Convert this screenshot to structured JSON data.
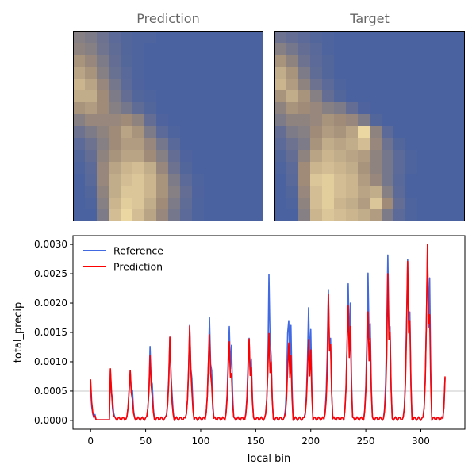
{
  "heatmaps": {
    "left_title": "Prediction",
    "right_title": "Target",
    "colors": {
      "low": "#4a62a0",
      "mid": "#a08b78",
      "high": "#f3dfa6"
    }
  },
  "chart_data": [
    {
      "type": "heatmap",
      "title": "Prediction",
      "rows": 16,
      "cols": 16,
      "values": [
        [
          0.35,
          0.3,
          0.2,
          0.1,
          0.05,
          0.02,
          0.02,
          0.0,
          0.0,
          0.0,
          0.0,
          0.0,
          0.0,
          0.0,
          0.0,
          0.0
        ],
        [
          0.4,
          0.35,
          0.22,
          0.12,
          0.05,
          0.02,
          0.0,
          0.0,
          0.0,
          0.0,
          0.0,
          0.0,
          0.0,
          0.0,
          0.0,
          0.0
        ],
        [
          0.55,
          0.45,
          0.3,
          0.15,
          0.06,
          0.02,
          0.0,
          0.0,
          0.0,
          0.0,
          0.0,
          0.0,
          0.0,
          0.0,
          0.0,
          0.0
        ],
        [
          0.65,
          0.55,
          0.35,
          0.18,
          0.08,
          0.02,
          0.0,
          0.0,
          0.0,
          0.0,
          0.0,
          0.0,
          0.0,
          0.0,
          0.0,
          0.0
        ],
        [
          0.75,
          0.65,
          0.45,
          0.25,
          0.1,
          0.03,
          0.0,
          0.0,
          0.0,
          0.0,
          0.0,
          0.0,
          0.0,
          0.0,
          0.0,
          0.0
        ],
        [
          0.7,
          0.7,
          0.5,
          0.3,
          0.15,
          0.05,
          0.02,
          0.0,
          0.0,
          0.0,
          0.0,
          0.0,
          0.0,
          0.0,
          0.0,
          0.0
        ],
        [
          0.55,
          0.6,
          0.5,
          0.35,
          0.25,
          0.12,
          0.05,
          0.0,
          0.0,
          0.0,
          0.0,
          0.0,
          0.0,
          0.0,
          0.0,
          0.0
        ],
        [
          0.35,
          0.45,
          0.45,
          0.45,
          0.5,
          0.4,
          0.15,
          0.03,
          0.0,
          0.0,
          0.0,
          0.0,
          0.0,
          0.0,
          0.0,
          0.0
        ],
        [
          0.2,
          0.3,
          0.4,
          0.5,
          0.65,
          0.55,
          0.3,
          0.1,
          0.02,
          0.0,
          0.0,
          0.0,
          0.0,
          0.0,
          0.0,
          0.0
        ],
        [
          0.1,
          0.2,
          0.35,
          0.5,
          0.6,
          0.6,
          0.45,
          0.25,
          0.08,
          0.0,
          0.0,
          0.0,
          0.0,
          0.0,
          0.0,
          0.0
        ],
        [
          0.05,
          0.15,
          0.4,
          0.55,
          0.65,
          0.65,
          0.5,
          0.35,
          0.15,
          0.03,
          0.0,
          0.0,
          0.0,
          0.0,
          0.0,
          0.0
        ],
        [
          0.02,
          0.1,
          0.45,
          0.65,
          0.75,
          0.8,
          0.7,
          0.45,
          0.2,
          0.05,
          0.0,
          0.0,
          0.0,
          0.0,
          0.0,
          0.0
        ],
        [
          0.0,
          0.08,
          0.45,
          0.7,
          0.8,
          0.85,
          0.75,
          0.55,
          0.3,
          0.1,
          0.02,
          0.0,
          0.0,
          0.0,
          0.0,
          0.0
        ],
        [
          0.0,
          0.05,
          0.4,
          0.7,
          0.85,
          0.85,
          0.75,
          0.55,
          0.35,
          0.15,
          0.03,
          0.0,
          0.0,
          0.0,
          0.0,
          0.0
        ],
        [
          0.0,
          0.02,
          0.35,
          0.75,
          0.9,
          0.85,
          0.7,
          0.5,
          0.3,
          0.12,
          0.02,
          0.0,
          0.0,
          0.0,
          0.0,
          0.0
        ],
        [
          0.0,
          0.0,
          0.3,
          0.8,
          0.95,
          0.8,
          0.65,
          0.45,
          0.25,
          0.1,
          0.02,
          0.0,
          0.0,
          0.0,
          0.0,
          0.0
        ]
      ]
    },
    {
      "type": "heatmap",
      "title": "Target",
      "rows": 16,
      "cols": 16,
      "values": [
        [
          0.2,
          0.15,
          0.1,
          0.05,
          0.02,
          0.0,
          0.0,
          0.0,
          0.0,
          0.0,
          0.0,
          0.0,
          0.0,
          0.0,
          0.0,
          0.0
        ],
        [
          0.35,
          0.25,
          0.15,
          0.08,
          0.02,
          0.0,
          0.0,
          0.0,
          0.0,
          0.0,
          0.0,
          0.0,
          0.0,
          0.0,
          0.0,
          0.0
        ],
        [
          0.55,
          0.4,
          0.2,
          0.1,
          0.05,
          0.0,
          0.0,
          0.0,
          0.0,
          0.0,
          0.0,
          0.0,
          0.0,
          0.0,
          0.0,
          0.0
        ],
        [
          0.7,
          0.55,
          0.3,
          0.12,
          0.05,
          0.0,
          0.0,
          0.0,
          0.0,
          0.0,
          0.0,
          0.0,
          0.0,
          0.0,
          0.0,
          0.0
        ],
        [
          0.75,
          0.6,
          0.4,
          0.2,
          0.1,
          0.02,
          0.0,
          0.0,
          0.0,
          0.0,
          0.0,
          0.0,
          0.0,
          0.0,
          0.0,
          0.0
        ],
        [
          0.55,
          0.7,
          0.55,
          0.35,
          0.15,
          0.05,
          0.0,
          0.0,
          0.0,
          0.0,
          0.0,
          0.0,
          0.0,
          0.0,
          0.0,
          0.0
        ],
        [
          0.4,
          0.55,
          0.5,
          0.45,
          0.35,
          0.3,
          0.15,
          0.03,
          0.0,
          0.0,
          0.0,
          0.0,
          0.0,
          0.0,
          0.0,
          0.0
        ],
        [
          0.3,
          0.4,
          0.4,
          0.45,
          0.55,
          0.5,
          0.45,
          0.3,
          0.05,
          0.0,
          0.0,
          0.0,
          0.0,
          0.0,
          0.0,
          0.0
        ],
        [
          0.15,
          0.3,
          0.35,
          0.5,
          0.6,
          0.55,
          0.65,
          0.95,
          0.4,
          0.1,
          0.0,
          0.0,
          0.0,
          0.0,
          0.0,
          0.0
        ],
        [
          0.1,
          0.2,
          0.3,
          0.55,
          0.7,
          0.65,
          0.7,
          0.8,
          0.45,
          0.2,
          0.05,
          0.0,
          0.0,
          0.0,
          0.0,
          0.0
        ],
        [
          0.05,
          0.15,
          0.4,
          0.65,
          0.75,
          0.7,
          0.65,
          0.6,
          0.4,
          0.25,
          0.1,
          0.02,
          0.0,
          0.0,
          0.0,
          0.0
        ],
        [
          0.02,
          0.1,
          0.5,
          0.75,
          0.8,
          0.75,
          0.7,
          0.55,
          0.4,
          0.25,
          0.1,
          0.02,
          0.0,
          0.0,
          0.0,
          0.0
        ],
        [
          0.0,
          0.08,
          0.5,
          0.85,
          0.9,
          0.8,
          0.75,
          0.6,
          0.45,
          0.25,
          0.08,
          0.0,
          0.0,
          0.0,
          0.0,
          0.0
        ],
        [
          0.0,
          0.05,
          0.45,
          0.8,
          0.9,
          0.8,
          0.75,
          0.65,
          0.7,
          0.35,
          0.1,
          0.0,
          0.0,
          0.0,
          0.0,
          0.0
        ],
        [
          0.0,
          0.02,
          0.4,
          0.8,
          0.9,
          0.75,
          0.7,
          0.6,
          0.85,
          0.5,
          0.15,
          0.02,
          0.0,
          0.0,
          0.0,
          0.0
        ],
        [
          0.0,
          0.0,
          0.35,
          0.75,
          0.85,
          0.8,
          0.75,
          0.7,
          0.6,
          0.3,
          0.1,
          0.02,
          0.0,
          0.0,
          0.0,
          0.0
        ]
      ]
    },
    {
      "type": "line",
      "xlabel": "local bin",
      "ylabel": "total_precip",
      "xlim": [
        -16,
        340
      ],
      "ylim": [
        -0.00015,
        0.00315
      ],
      "xticks": [
        0,
        50,
        100,
        150,
        200,
        250,
        300
      ],
      "yticks": [
        0.0,
        0.0005,
        0.001,
        0.0015,
        0.002,
        0.0025,
        0.003
      ],
      "ytick_labels": [
        "0.0000",
        "0.0005",
        "0.0010",
        "0.0015",
        "0.0020",
        "0.0025",
        "0.0030"
      ],
      "hline": 0.0005,
      "legend_position": "upper-left",
      "period": 18,
      "x_end": 322,
      "series": [
        {
          "name": "Reference",
          "color": "#4169e1",
          "peaks": [
            0.00052,
            0.00084,
            0.00085,
            0.00126,
            0.00142,
            0.00162,
            0.00175,
            0.0016,
            0.0014,
            0.00249,
            0.0017,
            0.00192,
            0.00223,
            0.00233,
            0.00251,
            0.00282,
            0.00274,
            0.00289
          ],
          "secondary": [
            8e-05,
            0.00035,
            0.00052,
            0.00062,
            0.00045,
            0.00072,
            0.00085,
            0.00128,
            0.00105,
            0.0011,
            0.00162,
            0.00155,
            0.0014,
            0.002,
            0.00165,
            0.0016,
            0.00185,
            0.00243
          ]
        },
        {
          "name": "Prediction",
          "color": "#ff0000",
          "peaks": [
            0.0007,
            0.00088,
            0.00085,
            0.0011,
            0.00142,
            0.00161,
            0.00146,
            0.00134,
            0.00139,
            0.00148,
            0.00132,
            0.00138,
            0.00215,
            0.00195,
            0.00185,
            0.0025,
            0.00271,
            0.003
          ],
          "secondary": [
            5e-05,
            0.0002,
            0.00035,
            0.0004,
            0.0003,
            0.0005,
            0.0006,
            0.0008,
            0.0009,
            0.001,
            0.0011,
            0.0012,
            0.0013,
            0.0016,
            0.0014,
            0.0015,
            0.0017,
            0.0018
          ]
        }
      ]
    }
  ]
}
